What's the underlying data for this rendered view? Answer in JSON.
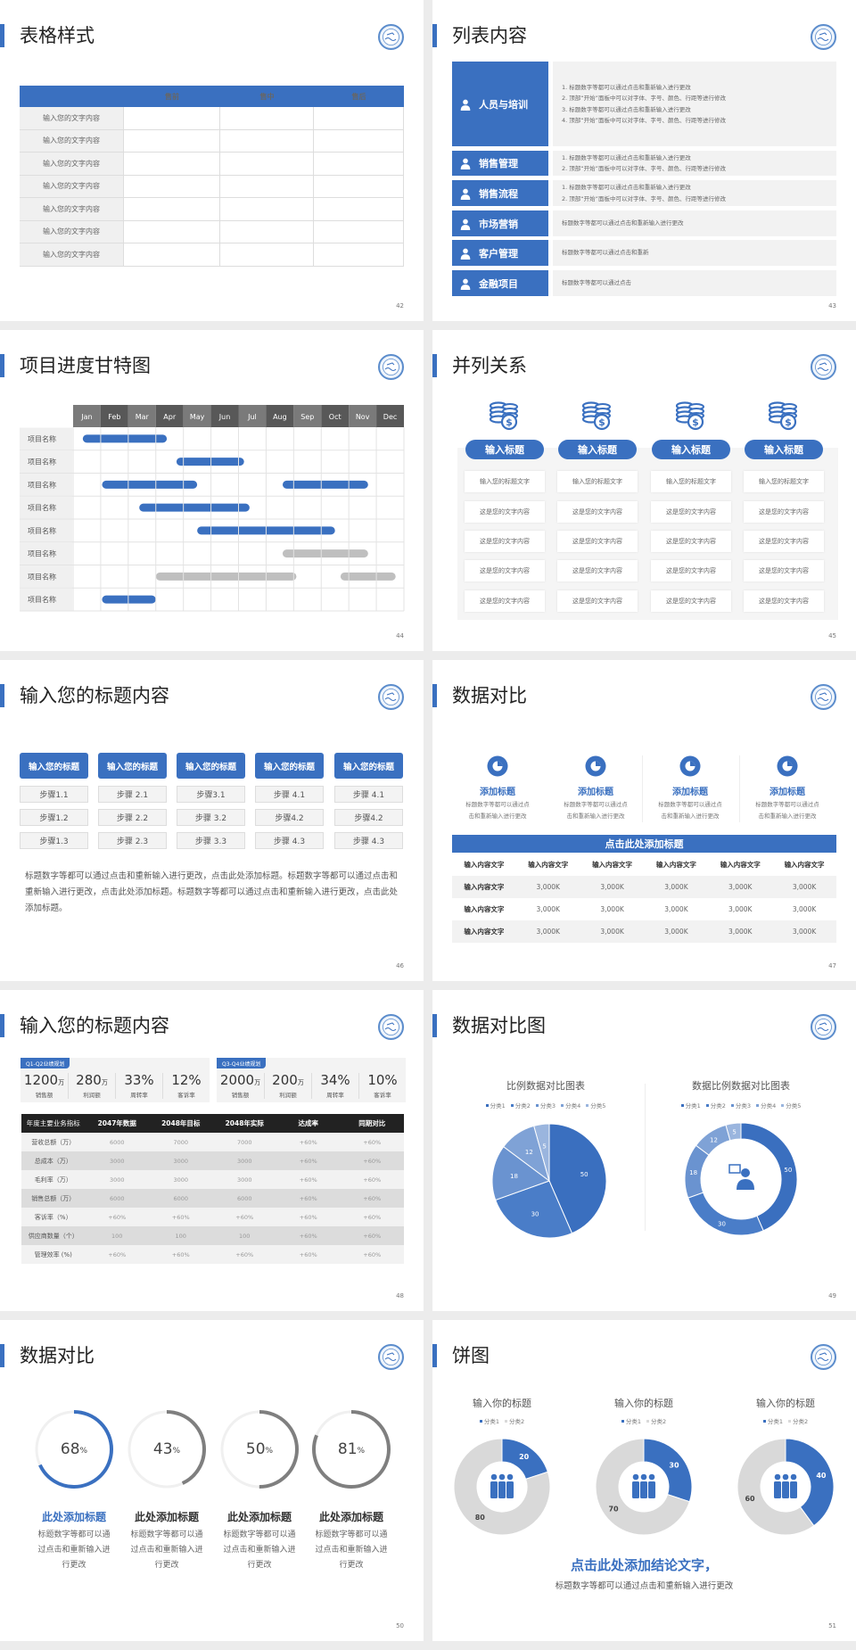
{
  "colors": {
    "brand_blue": "#3a70c0",
    "light_gray": "#f2f2f2",
    "ring_gray": "#7f7f7f",
    "donut_gray": "#d9d9d9",
    "header_black": "#222222"
  },
  "slides": [
    {
      "page": "42",
      "title": "表格样式",
      "table": {
        "headers": [
          "",
          "售前",
          "售中",
          "售后"
        ],
        "row_labels": [
          "输入您的文字内容",
          "输入您的文字内容",
          "输入您的文字内容",
          "输入您的文字内容",
          "输入您的文字内容",
          "输入您的文字内容",
          "输入您的文字内容"
        ]
      }
    },
    {
      "page": "43",
      "title": "列表内容",
      "items": [
        {
          "label": "人员与培训",
          "icon": "training-icon",
          "lines": [
            "1.  标题数字等都可以通过点击和重新输入进行更改",
            "2.  顶部“开始”面板中可以对字体、字号、颜色、行距等进行修改",
            "3.  标题数字等都可以通过点击和重新输入进行更改",
            "4.  顶部“开始”面板中可以对字体、字号、颜色、行距等进行修改"
          ]
        },
        {
          "label": "销售管理",
          "icon": "sales-manager-icon",
          "lines": [
            "1.  标题数字等都可以通过点击和重新输入进行更改",
            "2.  顶部“开始”面板中可以对字体、字号、颜色、行距等进行修改"
          ]
        },
        {
          "label": "销售流程",
          "icon": "process-shield-icon",
          "lines": [
            "1.  标题数字等都可以通过点击和重新输入进行更改",
            "2.  顶部“开始”面板中可以对字体、字号、颜色、行距等进行修改"
          ]
        },
        {
          "label": "市场营销",
          "icon": "bar-chart-icon",
          "lines": [
            "标题数字等都可以通过点击和重新输入进行更改"
          ]
        },
        {
          "label": "客户管理",
          "icon": "customers-icon",
          "lines": [
            "标题数字等都可以通过点击和重新"
          ]
        },
        {
          "label": "金融项目",
          "icon": "finance-hand-icon",
          "lines": [
            "标题数字等都可以通过点击"
          ]
        }
      ]
    },
    {
      "page": "44",
      "title": "项目进度甘特图"
    },
    {
      "page": "45",
      "title": "并列关系",
      "columns": [
        {
          "title": "输入标题",
          "icon": "coins-dollar-icon",
          "rows": [
            "输入您的标题文字",
            "这是您的文字内容",
            "这是您的文字内容",
            "这是您的文字内容",
            "这是您的文字内容"
          ]
        },
        {
          "title": "输入标题",
          "icon": "coins-dollar-icon",
          "rows": [
            "输入您的标题文字",
            "这是您的文字内容",
            "这是您的文字内容",
            "这是您的文字内容",
            "这是您的文字内容"
          ]
        },
        {
          "title": "输入标题",
          "icon": "coins-dollar-icon",
          "rows": [
            "输入您的标题文字",
            "这是您的文字内容",
            "这是您的文字内容",
            "这是您的文字内容",
            "这是您的文字内容"
          ]
        },
        {
          "title": "输入标题",
          "icon": "coins-dollar-icon",
          "rows": [
            "输入您的标题文字",
            "这是您的文字内容",
            "这是您的文字内容",
            "这是您的文字内容",
            "这是您的文字内容"
          ]
        }
      ]
    },
    {
      "page": "46",
      "title": "输入您的标题内容",
      "columns": [
        {
          "title": "输入您的标题",
          "steps": [
            "步骤1.1",
            "步骤1.2",
            "步骤1.3"
          ]
        },
        {
          "title": "输入您的标题",
          "steps": [
            "步骤 2.1",
            "步骤 2.2",
            "步骤 2.3"
          ]
        },
        {
          "title": "输入您的标题",
          "steps": [
            "步骤3.1",
            "步骤 3.2",
            "步骤 3.3"
          ]
        },
        {
          "title": "输入您的标题",
          "steps": [
            "步骤 4.1",
            "步骤4.2",
            "步骤 4.3"
          ]
        },
        {
          "title": "输入您的标题",
          "steps": [
            "步骤 4.1",
            "步骤4.2",
            "步骤 4.3"
          ]
        }
      ],
      "paragraph": "标题数字等都可以通过点击和重新输入进行更改，点击此处添加标题。标题数字等都可以通过点击和重新输入进行更改，点击此处添加标题。标题数字等都可以通过点击和重新输入进行更改，点击此处添加标题。"
    },
    {
      "page": "47",
      "title": "数据对比",
      "features": [
        {
          "title": "添加标题",
          "icon": "pie-icon",
          "desc": [
            "标题数字等都可以通过点",
            "击和重新输入进行更改"
          ]
        },
        {
          "title": "添加标题",
          "icon": "pie-icon",
          "desc": [
            "标题数字等都可以通过点",
            "击和重新输入进行更改"
          ]
        },
        {
          "title": "添加标题",
          "icon": "pie-icon",
          "desc": [
            "标题数字等都可以通过点",
            "击和重新输入进行更改"
          ]
        },
        {
          "title": "添加标题",
          "icon": "pie-icon",
          "desc": [
            "标题数字等都可以通过点",
            "击和重新输入进行更改"
          ]
        }
      ],
      "table": {
        "title": "点击此处添加标题",
        "headers": [
          "输入内容文字",
          "输入内容文字",
          "输入内容文字",
          "输入内容文字",
          "输入内容文字",
          "输入内容文字"
        ],
        "rows": [
          [
            "输入内容文字",
            "3,000K",
            "3,000K",
            "3,000K",
            "3,000K",
            "3,000K"
          ],
          [
            "输入内容文字",
            "3,000K",
            "3,000K",
            "3,000K",
            "3,000K",
            "3,000K"
          ],
          [
            "输入内容文字",
            "3,000K",
            "3,000K",
            "3,000K",
            "3,000K",
            "3,000K"
          ]
        ]
      }
    },
    {
      "page": "48",
      "title": "输入您的标题内容",
      "panels": [
        {
          "tag": "Q1-Q2业绩规划",
          "stats": [
            {
              "value": "1200",
              "unit": "万",
              "label": "销售额"
            },
            {
              "value": "280",
              "unit": "万",
              "label": "利润额"
            },
            {
              "value": "33%",
              "unit": "",
              "label": "周转率"
            },
            {
              "value": "12%",
              "unit": "",
              "label": "客诉率"
            }
          ]
        },
        {
          "tag": "Q3-Q4业绩规划",
          "stats": [
            {
              "value": "2000",
              "unit": "万",
              "label": "销售额"
            },
            {
              "value": "200",
              "unit": "万",
              "label": "利润额"
            },
            {
              "value": "34%",
              "unit": "",
              "label": "周转率"
            },
            {
              "value": "10%",
              "unit": "",
              "label": "客诉率"
            }
          ]
        }
      ],
      "table": {
        "headers": [
          "年度主要业务指标",
          "2047年数据",
          "2048年目标",
          "2048年实际",
          "达成率",
          "同期对比"
        ],
        "rows": [
          [
            "营收总额（万）",
            "6000",
            "7000",
            "7000",
            "+60%",
            "+60%"
          ],
          [
            "总成本（万）",
            "3000",
            "3000",
            "3000",
            "+60%",
            "+60%"
          ],
          [
            "毛利率（万）",
            "3000",
            "3000",
            "3000",
            "+60%",
            "+60%"
          ],
          [
            "销售总额（万）",
            "6000",
            "6000",
            "6000",
            "+60%",
            "+60%"
          ],
          [
            "客诉率（%）",
            "+60%",
            "+60%",
            "+60%",
            "+60%",
            "+60%"
          ],
          [
            "供应商数量（个）",
            "100",
            "100",
            "100",
            "+60%",
            "+60%"
          ],
          [
            "管理效率 (%)",
            "+60%",
            "+60%",
            "+60%",
            "+60%",
            "+60%"
          ]
        ]
      }
    },
    {
      "page": "49",
      "title": "数据对比图"
    },
    {
      "page": "50",
      "title": "数据对比",
      "rings": [
        {
          "value": 68,
          "unit": "%",
          "color": "#3a70c0",
          "title": "此处添加标题",
          "title_color": "#3a70c0",
          "desc": [
            "标题数字等都可以通",
            "过点击和重新输入进",
            "行更改"
          ]
        },
        {
          "value": 43,
          "unit": "%",
          "color": "#7f7f7f",
          "title": "此处添加标题",
          "title_color": "#333333",
          "desc": [
            "标题数字等都可以通",
            "过点击和重新输入进",
            "行更改"
          ]
        },
        {
          "value": 50,
          "unit": "%",
          "color": "#7f7f7f",
          "title": "此处添加标题",
          "title_color": "#333333",
          "desc": [
            "标题数字等都可以通",
            "过点击和重新输入进",
            "行更改"
          ]
        },
        {
          "value": 81,
          "unit": "%",
          "color": "#7f7f7f",
          "title": "此处添加标题",
          "title_color": "#333333",
          "desc": [
            "标题数字等都可以通",
            "过点击和重新输入进",
            "行更改"
          ]
        }
      ]
    },
    {
      "page": "51",
      "title": "饼图",
      "conclusion": "点击此处添加结论文字，",
      "subtext": "标题数字等都可以通过点击和重新输入进行更改"
    }
  ],
  "chart_data": [
    {
      "type": "gantt",
      "slide": "44",
      "months": [
        "Jan",
        "Feb",
        "Mar",
        "Apr",
        "May",
        "Jun",
        "Jul",
        "Aug",
        "Sep",
        "Oct",
        "Nov",
        "Dec"
      ],
      "rows": [
        {
          "label": "项目名称",
          "bars": [
            {
              "start": 0.35,
              "end": 3.4,
              "color": "#3a70c0"
            }
          ]
        },
        {
          "label": "项目名称",
          "bars": [
            {
              "start": 3.75,
              "end": 6.2,
              "color": "#3a70c0"
            }
          ]
        },
        {
          "label": "项目名称",
          "bars": [
            {
              "start": 1.05,
              "end": 4.5,
              "color": "#3a70c0"
            },
            {
              "start": 7.6,
              "end": 10.7,
              "color": "#3a70c0"
            }
          ]
        },
        {
          "label": "项目名称",
          "bars": [
            {
              "start": 2.4,
              "end": 6.4,
              "color": "#3a70c0"
            }
          ]
        },
        {
          "label": "项目名称",
          "bars": [
            {
              "start": 4.5,
              "end": 9.5,
              "color": "#3a70c0"
            }
          ]
        },
        {
          "label": "项目名称",
          "bars": [
            {
              "start": 7.6,
              "end": 10.7,
              "color": "#bfbfbf"
            }
          ]
        },
        {
          "label": "项目名称",
          "bars": [
            {
              "start": 3.0,
              "end": 8.1,
              "color": "#bfbfbf"
            },
            {
              "start": 9.7,
              "end": 11.7,
              "color": "#bfbfbf"
            }
          ]
        },
        {
          "label": "项目名称",
          "bars": [
            {
              "start": 1.05,
              "end": 3.0,
              "color": "#3a70c0"
            }
          ]
        }
      ]
    },
    {
      "type": "pie",
      "slide": "49",
      "title": "比例数据对比图表",
      "categories": [
        "分类1",
        "分类2",
        "分类3",
        "分类4",
        "分类5"
      ],
      "values": [
        50,
        30,
        18,
        12,
        5
      ],
      "colors": [
        "#3a6fbf",
        "#4a7dc8",
        "#6a93d0",
        "#7fa2d6",
        "#9ab5de"
      ],
      "legend": "top"
    },
    {
      "type": "donut",
      "slide": "49",
      "title": "数据比例数据对比图表",
      "categories": [
        "分类1",
        "分类2",
        "分类3",
        "分类4",
        "分类5"
      ],
      "values": [
        50,
        30,
        18,
        12,
        5
      ],
      "colors": [
        "#3a6fbf",
        "#4a7dc8",
        "#6a93d0",
        "#7fa2d6",
        "#9ab5de"
      ],
      "legend": "top",
      "center_icon": "support-agent-icon"
    },
    {
      "type": "donut",
      "slide": "51",
      "title": "输入你的标题",
      "categories": [
        "分类1",
        "分类2"
      ],
      "values": [
        20,
        80
      ],
      "colors": [
        "#3a70c0",
        "#d9d9d9"
      ],
      "legend": "top",
      "center_icon": "team-icon"
    },
    {
      "type": "donut",
      "slide": "51",
      "title": "输入你的标题",
      "categories": [
        "分类1",
        "分类2"
      ],
      "values": [
        30,
        70
      ],
      "colors": [
        "#3a70c0",
        "#d9d9d9"
      ],
      "legend": "top",
      "center_icon": "team-icon"
    },
    {
      "type": "donut",
      "slide": "51",
      "title": "输入你的标题",
      "categories": [
        "分类1",
        "分类2"
      ],
      "values": [
        40,
        60
      ],
      "colors": [
        "#3a70c0",
        "#d9d9d9"
      ],
      "legend": "top",
      "center_icon": "team-icon"
    }
  ]
}
